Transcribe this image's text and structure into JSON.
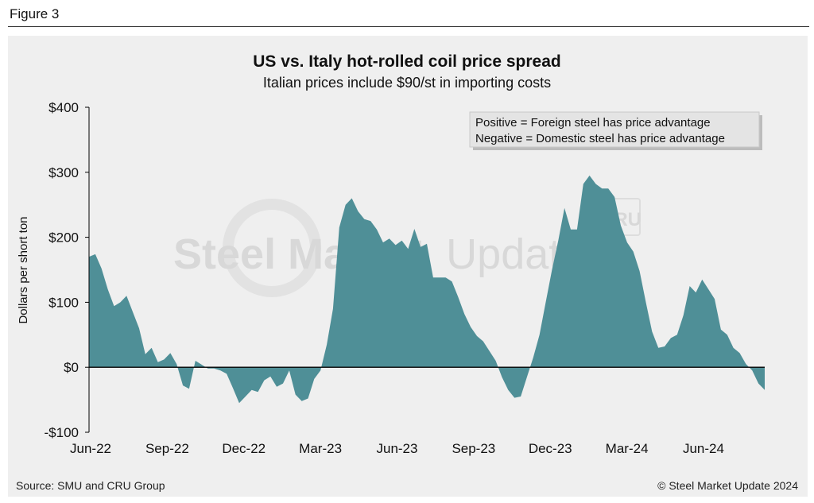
{
  "figure_label": "Figure 3",
  "source": "Source: SMU and CRU Group",
  "copyright": "© Steel Market Update 2024",
  "watermark": {
    "text_bold": "Steel Market",
    "text_light": "Update",
    "badge": "CRU"
  },
  "colors": {
    "fill": "#4f8f97",
    "zero_line": "#000000",
    "panel_bg": "#efefef"
  },
  "chart_data": {
    "type": "area",
    "title": "US vs. Italy hot-rolled coil price spread",
    "subtitle": "Italian prices include $90/st in importing costs",
    "xlabel": "",
    "ylabel": "Dollars per short ton",
    "ylim": [
      -100,
      400
    ],
    "yticks": [
      400,
      300,
      200,
      100,
      0,
      -100
    ],
    "ytick_labels": [
      "$400",
      "$300",
      "$200",
      "$100",
      "$0",
      "-$100"
    ],
    "xtick_labels": [
      "Jun-22",
      "Sep-22",
      "Dec-22",
      "Mar-23",
      "Jun-23",
      "Sep-23",
      "Dec-23",
      "Mar-24",
      "Jun-24"
    ],
    "xlim_weeks": [
      0,
      108
    ],
    "legend_box": [
      "Positive = Foreign steel has price advantage",
      "Negative = Domestic steel has price advantage"
    ],
    "legend_placement": "top-right",
    "grid": false,
    "series": [
      {
        "values": [
          170,
          174,
          152,
          120,
          94,
          100,
          110,
          85,
          60,
          20,
          30,
          8,
          12,
          22,
          5,
          -28,
          -33,
          10,
          4,
          -2,
          -2,
          -5,
          -10,
          -32,
          -55,
          -45,
          -35,
          -38,
          -20,
          -14,
          -30,
          -25,
          -5,
          -42,
          -52,
          -48,
          -18,
          -5,
          35,
          90,
          215,
          250,
          260,
          240,
          228,
          225,
          212,
          192,
          198,
          188,
          195,
          182,
          213,
          185,
          190,
          138,
          138,
          138,
          132,
          108,
          82,
          62,
          48,
          40,
          25,
          10,
          -15,
          -35,
          -47,
          -45,
          -15,
          15,
          50,
          100,
          150,
          195,
          245,
          212,
          212,
          282,
          295,
          282,
          275,
          275,
          262,
          218,
          192,
          178,
          148,
          100,
          55,
          30,
          32,
          45,
          50,
          80,
          125,
          115,
          135,
          120,
          105,
          58,
          50,
          30,
          22,
          5,
          -5,
          -25,
          -35
        ]
      }
    ]
  }
}
